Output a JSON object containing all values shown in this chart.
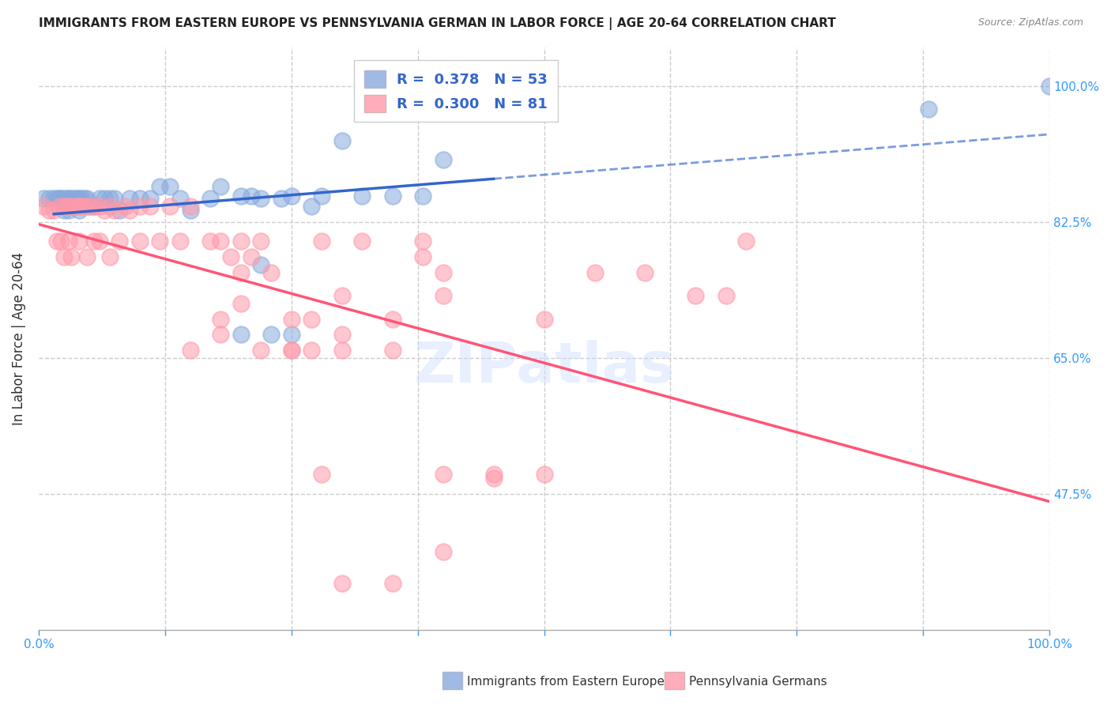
{
  "title": "IMMIGRANTS FROM EASTERN EUROPE VS PENNSYLVANIA GERMAN IN LABOR FORCE | AGE 20-64 CORRELATION CHART",
  "source": "Source: ZipAtlas.com",
  "ylabel": "In Labor Force | Age 20-64",
  "ytick_labels": [
    "100.0%",
    "82.5%",
    "65.0%",
    "47.5%"
  ],
  "ytick_values": [
    1.0,
    0.825,
    0.65,
    0.475
  ],
  "xlim": [
    0.0,
    1.0
  ],
  "ylim": [
    0.3,
    1.05
  ],
  "legend_r1": "R =  0.378",
  "legend_n1": "N = 53",
  "legend_r2": "R =  0.300",
  "legend_n2": "N = 81",
  "color_blue": "#88AADD",
  "color_pink": "#FF99AA",
  "color_blue_line": "#3366CC",
  "color_pink_line": "#FF5577",
  "color_axis_labels": "#3399FF",
  "blue_x": [
    0.005,
    0.01,
    0.015,
    0.018,
    0.02,
    0.022,
    0.025,
    0.025,
    0.028,
    0.03,
    0.03,
    0.032,
    0.035,
    0.038,
    0.04,
    0.04,
    0.042,
    0.045,
    0.048,
    0.05,
    0.055,
    0.06,
    0.065,
    0.07,
    0.075,
    0.08,
    0.09,
    0.1,
    0.11,
    0.12,
    0.13,
    0.14,
    0.15,
    0.17,
    0.18,
    0.2,
    0.21,
    0.22,
    0.23,
    0.25,
    0.27,
    0.3,
    0.32,
    0.35,
    0.38,
    0.4,
    0.2,
    0.25,
    0.28,
    0.24,
    0.22,
    0.88,
    1.0
  ],
  "blue_y": [
    0.855,
    0.855,
    0.855,
    0.855,
    0.855,
    0.855,
    0.855,
    0.84,
    0.855,
    0.855,
    0.84,
    0.855,
    0.855,
    0.855,
    0.855,
    0.84,
    0.855,
    0.855,
    0.855,
    0.845,
    0.845,
    0.855,
    0.855,
    0.855,
    0.855,
    0.84,
    0.855,
    0.855,
    0.855,
    0.87,
    0.87,
    0.855,
    0.84,
    0.855,
    0.87,
    0.858,
    0.858,
    0.855,
    0.68,
    0.858,
    0.845,
    0.93,
    0.858,
    0.858,
    0.858,
    0.905,
    0.68,
    0.68,
    0.858,
    0.855,
    0.77,
    0.97,
    1.0
  ],
  "pink_x": [
    0.005,
    0.01,
    0.015,
    0.018,
    0.02,
    0.022,
    0.025,
    0.025,
    0.028,
    0.03,
    0.03,
    0.032,
    0.035,
    0.038,
    0.04,
    0.04,
    0.042,
    0.045,
    0.048,
    0.05,
    0.055,
    0.055,
    0.06,
    0.06,
    0.065,
    0.07,
    0.07,
    0.075,
    0.08,
    0.085,
    0.09,
    0.1,
    0.1,
    0.11,
    0.12,
    0.13,
    0.14,
    0.15,
    0.17,
    0.18,
    0.19,
    0.2,
    0.21,
    0.22,
    0.23,
    0.25,
    0.27,
    0.28,
    0.3,
    0.32,
    0.35,
    0.38,
    0.4,
    0.45,
    0.5,
    0.55,
    0.6,
    0.65,
    0.68,
    0.7,
    0.38,
    0.4,
    0.27,
    0.25,
    0.2,
    0.18,
    0.15,
    0.22,
    0.3,
    0.35,
    0.28,
    0.25,
    0.2,
    0.18,
    0.3,
    0.4,
    0.45,
    0.5,
    0.4,
    0.35,
    0.3
  ],
  "pink_y": [
    0.845,
    0.84,
    0.84,
    0.8,
    0.845,
    0.8,
    0.845,
    0.78,
    0.845,
    0.845,
    0.8,
    0.78,
    0.845,
    0.845,
    0.845,
    0.8,
    0.845,
    0.845,
    0.78,
    0.845,
    0.845,
    0.8,
    0.845,
    0.8,
    0.84,
    0.845,
    0.78,
    0.84,
    0.8,
    0.845,
    0.84,
    0.845,
    0.8,
    0.845,
    0.8,
    0.845,
    0.8,
    0.845,
    0.8,
    0.8,
    0.78,
    0.8,
    0.78,
    0.8,
    0.76,
    0.7,
    0.7,
    0.8,
    0.73,
    0.8,
    0.7,
    0.8,
    0.76,
    0.5,
    0.7,
    0.76,
    0.76,
    0.73,
    0.73,
    0.8,
    0.78,
    0.73,
    0.66,
    0.66,
    0.72,
    0.7,
    0.66,
    0.66,
    0.66,
    0.66,
    0.5,
    0.66,
    0.76,
    0.68,
    0.68,
    0.5,
    0.495,
    0.5,
    0.4,
    0.36,
    0.36
  ],
  "grid_color": "#CCCCCC",
  "background_color": "#FFFFFF",
  "xtick_positions": [
    0.0,
    0.125,
    0.25,
    0.375,
    0.5,
    0.625,
    0.75,
    0.875,
    1.0
  ]
}
